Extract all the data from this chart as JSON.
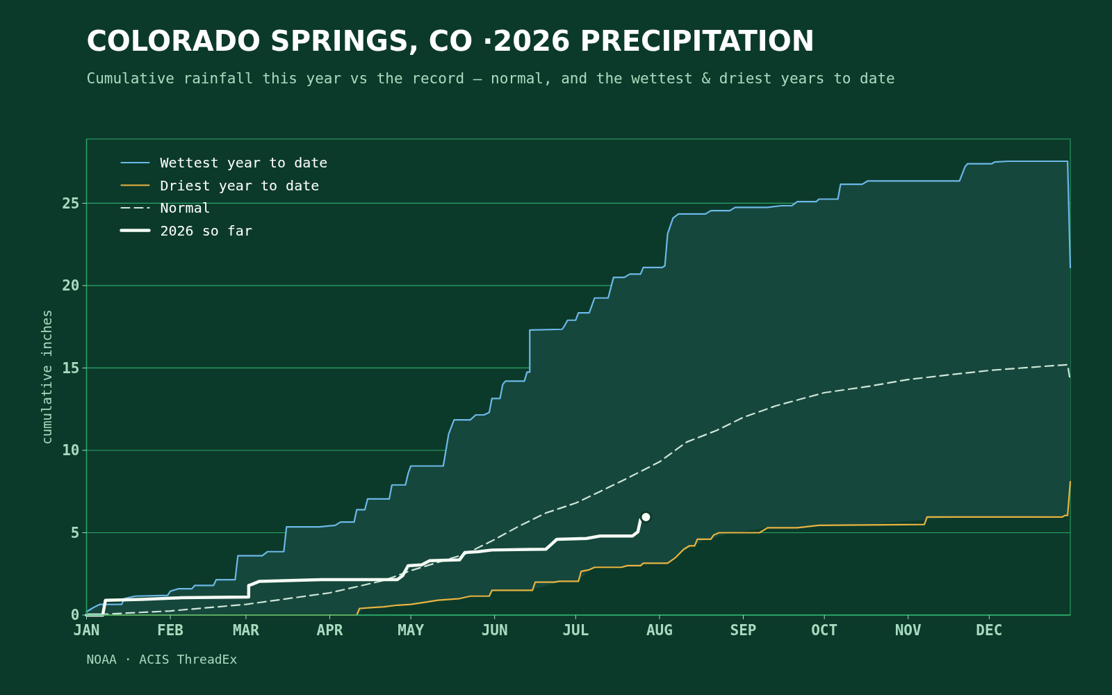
{
  "chart_data": {
    "type": "line",
    "title": "COLORADO SPRINGS, CO ·2026 PRECIPITATION",
    "subtitle": "Cumulative rainfall this year vs the record — normal, and the wettest & driest years to date",
    "ylabel": "cumulative inches",
    "annotations": [
      "NOAA · ACIS ThreadEx"
    ],
    "xlim": [
      "--01-01",
      "--12-31"
    ],
    "ylim": [
      0,
      28.9
    ],
    "xticks": [
      {
        "value": "--01-01",
        "label": "JAN"
      },
      {
        "value": "--02-01",
        "label": "FEB"
      },
      {
        "value": "--03-01",
        "label": "MAR"
      },
      {
        "value": "--04-01",
        "label": "APR"
      },
      {
        "value": "--05-01",
        "label": "MAY"
      },
      {
        "value": "--06-01",
        "label": "JUN"
      },
      {
        "value": "--07-01",
        "label": "JUL"
      },
      {
        "value": "--08-01",
        "label": "AUG"
      },
      {
        "value": "--09-01",
        "label": "SEP"
      },
      {
        "value": "--10-01",
        "label": "OCT"
      },
      {
        "value": "--11-01",
        "label": "NOV"
      },
      {
        "value": "--12-01",
        "label": "DEC"
      }
    ],
    "yticks": [
      0,
      5,
      10,
      15,
      20,
      25
    ],
    "grid": "y",
    "legend": "top left",
    "series": [
      {
        "name": "Wettest year to date",
        "color": "#6cb8e8",
        "x": [
          "--01-01",
          "--01-03",
          "--01-04",
          "--01-06",
          "--01-14",
          "--01-15",
          "--01-19",
          "--01-31",
          "--02-01",
          "--02-04",
          "--02-09",
          "--02-10",
          "--02-17",
          "--02-18",
          "--02-25",
          "--02-26",
          "--03-07",
          "--03-09",
          "--03-15",
          "--03-16",
          "--03-28",
          "--04-03",
          "--04-05",
          "--04-10",
          "--04-11",
          "--04-14",
          "--04-15",
          "--04-23",
          "--04-24",
          "--04-29",
          "--04-30",
          "--05-01",
          "--05-13",
          "--05-15",
          "--05-17",
          "--05-23",
          "--05-25",
          "--05-28",
          "--05-30",
          "--05-31",
          "--06-03",
          "--06-04",
          "--06-05",
          "--06-12",
          "--06-13",
          "--06-14",
          "--06-14",
          "--06-26",
          "--06-27",
          "--06-28",
          "--07-01",
          "--07-02",
          "--07-06",
          "--07-08",
          "--07-13",
          "--07-15",
          "--07-19",
          "--07-21",
          "--07-25",
          "--07-26",
          "--08-02",
          "--08-03",
          "--08-04",
          "--08-06",
          "--08-08",
          "--08-18",
          "--08-20",
          "--08-27",
          "--08-29",
          "--09-10",
          "--09-15",
          "--09-19",
          "--09-21",
          "--09-28",
          "--09-29",
          "--10-06",
          "--10-07",
          "--10-15",
          "--10-17",
          "--11-20",
          "--11-22",
          "--11-23",
          "--12-02",
          "--12-03",
          "--12-08",
          "--12-30",
          "--12-31"
        ],
        "values": [
          0.2,
          0.4,
          0.5,
          0.65,
          0.65,
          1.0,
          1.15,
          1.2,
          1.45,
          1.6,
          1.6,
          1.8,
          1.8,
          2.15,
          2.15,
          3.6,
          3.6,
          3.85,
          3.85,
          5.35,
          5.35,
          5.45,
          5.65,
          5.65,
          6.4,
          6.4,
          7.05,
          7.05,
          7.9,
          7.9,
          8.6,
          9.05,
          9.05,
          11.0,
          11.85,
          11.85,
          12.15,
          12.15,
          12.3,
          13.15,
          13.15,
          14.0,
          14.2,
          14.2,
          14.75,
          14.75,
          17.3,
          17.35,
          17.6,
          17.9,
          17.9,
          18.35,
          18.35,
          19.25,
          19.25,
          20.5,
          20.5,
          20.7,
          20.7,
          21.1,
          21.1,
          21.2,
          23.15,
          24.1,
          24.35,
          24.35,
          24.55,
          24.55,
          24.75,
          24.75,
          24.85,
          24.85,
          25.1,
          25.1,
          25.25,
          25.25,
          26.15,
          26.15,
          26.35,
          26.35,
          27.2,
          27.4,
          27.4,
          27.5,
          27.55,
          27.55,
          21.1
        ],
        "upper": [
          0.2,
          0.4,
          0.5,
          0.65,
          0.65,
          1.0,
          1.15,
          1.2,
          1.45,
          1.6,
          1.6,
          1.8,
          1.8,
          2.15,
          2.15,
          3.6,
          3.6,
          3.85,
          3.85,
          5.35,
          5.35,
          5.45,
          5.65,
          5.65,
          6.4,
          6.4,
          7.05,
          7.05,
          7.9,
          7.9,
          8.6,
          9.05,
          9.05,
          11.0,
          11.85,
          11.85,
          12.15,
          12.15,
          12.3,
          13.15,
          13.15,
          14.0,
          14.2,
          14.2,
          14.75,
          14.75,
          17.3,
          17.35,
          17.6,
          17.9,
          17.9,
          18.35,
          18.35,
          19.25,
          19.25,
          20.5,
          20.5,
          20.7,
          20.7,
          21.1,
          21.1,
          21.2,
          23.15,
          24.1,
          24.35,
          24.35,
          24.55,
          24.55,
          24.75,
          24.75,
          24.85,
          24.85,
          25.1,
          25.1,
          25.25,
          25.25,
          26.15,
          26.15,
          26.35,
          26.35,
          27.2,
          27.4,
          27.4,
          27.5,
          27.55,
          27.55,
          21.1
        ],
        "lower": [
          0,
          0,
          0,
          0,
          0,
          0,
          0,
          0,
          0,
          0,
          0,
          0,
          0,
          0,
          0,
          0,
          0,
          0,
          0,
          0,
          0,
          0,
          0,
          0,
          0,
          0.45,
          0.45,
          0.5,
          0.55,
          0.6,
          0.65,
          0.65,
          0.9,
          0.95,
          1.0,
          1.15,
          1.15,
          1.15,
          1.15,
          1.5,
          1.5,
          1.5,
          1.5,
          1.5,
          1.5,
          1.5,
          1.5,
          2.05,
          2.05,
          2.05,
          2.05,
          2.05,
          2.75,
          2.9,
          2.9,
          2.9,
          2.9,
          3.0,
          3.0,
          3.15,
          3.15,
          3.15,
          3.15,
          3.4,
          3.7,
          4.6,
          4.6,
          5.0,
          5.0,
          5.3,
          5.3,
          5.3,
          5.3,
          5.4,
          5.45,
          5.45,
          5.45,
          5.5,
          5.5,
          5.95,
          5.95,
          5.95,
          5.95,
          5.95,
          5.95,
          6.05,
          8.1
        ]
      },
      {
        "name": "Driest year to date",
        "color": "#e8b440",
        "x": [
          "--01-01",
          "--04-11",
          "--04-12",
          "--04-16",
          "--04-21",
          "--04-26",
          "--05-01",
          "--05-07",
          "--05-11",
          "--05-19",
          "--05-23",
          "--05-30",
          "--05-31",
          "--06-15",
          "--06-16",
          "--06-23",
          "--06-25",
          "--07-02",
          "--07-03",
          "--07-06",
          "--07-08",
          "--07-18",
          "--07-20",
          "--07-25",
          "--07-26",
          "--08-04",
          "--08-07",
          "--08-10",
          "--08-12",
          "--08-14",
          "--08-15",
          "--08-20",
          "--08-21",
          "--08-23",
          "--09-07",
          "--09-10",
          "--09-21",
          "--09-29",
          "--11-07",
          "--11-08",
          "--12-28",
          "--12-29",
          "--12-30",
          "--12-31"
        ],
        "values": [
          0,
          0,
          0.4,
          0.45,
          0.5,
          0.6,
          0.65,
          0.8,
          0.9,
          1.0,
          1.15,
          1.15,
          1.5,
          1.5,
          2.0,
          2.0,
          2.05,
          2.05,
          2.65,
          2.75,
          2.9,
          2.9,
          3.0,
          3.0,
          3.15,
          3.15,
          3.5,
          4.0,
          4.2,
          4.2,
          4.6,
          4.6,
          4.85,
          5.0,
          5.0,
          5.3,
          5.3,
          5.45,
          5.5,
          5.95,
          5.95,
          6.05,
          6.05,
          8.1
        ]
      },
      {
        "name": "Normal",
        "color": "#cfe6d8",
        "line_style": "dashed",
        "x": [
          "--01-01",
          "--02-01",
          "--03-01",
          "--04-01",
          "--04-21",
          "--05-01",
          "--05-21",
          "--05-31",
          "--06-10",
          "--06-20",
          "--07-01",
          "--07-10",
          "--07-20",
          "--08-01",
          "--08-11",
          "--08-22",
          "--09-01",
          "--09-13",
          "--10-01",
          "--10-18",
          "--11-01",
          "--11-17",
          "--12-01",
          "--12-17",
          "--12-30",
          "--12-31"
        ],
        "values": [
          0,
          0.25,
          0.65,
          1.35,
          2.1,
          2.7,
          3.7,
          4.5,
          5.4,
          6.2,
          6.8,
          7.5,
          8.3,
          9.3,
          10.5,
          11.2,
          12.0,
          12.7,
          13.5,
          13.9,
          14.3,
          14.6,
          14.85,
          15.05,
          15.2,
          14.2
        ]
      },
      {
        "name": "2026 so far",
        "color": "#f4fbf4",
        "x": [
          "--01-01",
          "--01-07",
          "--01-08",
          "--01-21",
          "--02-05",
          "--03-02",
          "--03-02",
          "--03-03",
          "--03-06",
          "--03-29",
          "--04-26",
          "--04-28",
          "--04-30",
          "--05-05",
          "--05-08",
          "--05-19",
          "--05-21",
          "--05-26",
          "--05-31",
          "--06-20",
          "--06-22",
          "--06-24",
          "--07-05",
          "--07-10",
          "--07-22",
          "--07-24",
          "--07-25"
        ],
        "values": [
          0,
          0,
          0.9,
          0.95,
          1.05,
          1.1,
          1.8,
          1.85,
          2.05,
          2.15,
          2.15,
          2.4,
          3.0,
          3.05,
          3.3,
          3.35,
          3.8,
          3.85,
          3.95,
          4.0,
          4.3,
          4.6,
          4.65,
          4.8,
          4.8,
          5.05,
          5.8
        ]
      },
      {
        "type": "scatter",
        "color": "#f4fbf4",
        "marker": "circle",
        "x": [
          "--07-27"
        ],
        "values": [
          5.95
        ]
      }
    ]
  }
}
